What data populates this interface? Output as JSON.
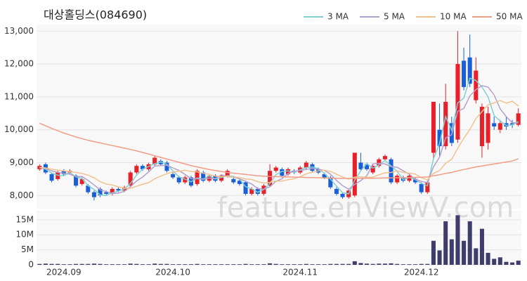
{
  "watermark": "feature.enViewV.com",
  "chart_data": [
    {
      "type": "candlestick",
      "title": "대상홀딩스(084690)",
      "up_color": "#e8202a",
      "down_color": "#1a5fd6",
      "ylim": [
        7600,
        13200
      ],
      "yticks": [
        {
          "value": 8000,
          "label": "8,000"
        },
        {
          "value": 9000,
          "label": "9,000"
        },
        {
          "value": 10000,
          "label": "10,000"
        },
        {
          "value": 11000,
          "label": "11,000"
        },
        {
          "value": 12000,
          "label": "12,000"
        },
        {
          "value": 13000,
          "label": "13,000"
        }
      ],
      "grid": true,
      "legend": "top-right",
      "open": [
        8800,
        8950,
        8650,
        8500,
        8750,
        8700,
        8600,
        8350,
        8300,
        8100,
        8200,
        8100,
        8050,
        8200,
        8150,
        8300,
        8700,
        8900,
        8800,
        8950,
        9050,
        9000,
        8650,
        8550,
        8400,
        8550,
        8350,
        8700,
        8450,
        8600,
        8450,
        8600,
        8500,
        8450,
        8400,
        8050,
        8200,
        8050,
        8300,
        8750,
        8800,
        8650,
        8750,
        8700,
        8850,
        8950,
        8800,
        8650,
        8550,
        8200,
        8050,
        7950,
        8000,
        9000,
        8950,
        8700,
        8900,
        9100,
        9100,
        8400,
        8550,
        8450,
        8500,
        8350,
        8100,
        9300,
        10000,
        9500,
        10200,
        9700,
        12100,
        12200,
        10900,
        9500,
        9600,
        10200,
        10000,
        10200,
        10200,
        10150
      ],
      "high": [
        8950,
        9000,
        8700,
        8750,
        8800,
        8800,
        8650,
        8550,
        8350,
        8150,
        8250,
        8150,
        8250,
        8250,
        8300,
        8750,
        8950,
        8950,
        9000,
        9200,
        9100,
        9050,
        8700,
        8600,
        8600,
        8600,
        8800,
        8750,
        8650,
        8650,
        8650,
        8800,
        8550,
        8500,
        8450,
        8250,
        8250,
        8350,
        8950,
        8900,
        8850,
        8850,
        8800,
        8900,
        9050,
        9000,
        8850,
        8700,
        8600,
        8250,
        8100,
        8200,
        9300,
        9300,
        9000,
        8950,
        9150,
        9250,
        9150,
        8650,
        8600,
        8650,
        8550,
        8400,
        8450,
        10850,
        10800,
        11400,
        10400,
        13000,
        12500,
        12900,
        12200,
        10800,
        10700,
        10400,
        10300,
        10400,
        10300,
        10650
      ],
      "low": [
        8750,
        8650,
        8400,
        8450,
        8600,
        8650,
        8250,
        8300,
        8050,
        7850,
        7950,
        8000,
        8000,
        8100,
        8100,
        8250,
        8650,
        8750,
        8750,
        8900,
        8900,
        8700,
        8500,
        8350,
        8350,
        8250,
        8300,
        8400,
        8400,
        8400,
        8400,
        8550,
        8350,
        8300,
        8000,
        8000,
        8000,
        8000,
        8250,
        8700,
        8550,
        8600,
        8650,
        8650,
        8800,
        8700,
        8650,
        8500,
        8200,
        8000,
        7900,
        7900,
        7950,
        8750,
        8750,
        8650,
        8850,
        9050,
        8350,
        8350,
        8400,
        8400,
        8350,
        8050,
        8050,
        9100,
        9200,
        9400,
        9500,
        9600,
        11200,
        11300,
        10800,
        9150,
        9400,
        10000,
        9900,
        10000,
        10050,
        10100
      ],
      "close": [
        8900,
        8700,
        8450,
        8700,
        8650,
        8750,
        8300,
        8500,
        8100,
        7950,
        8000,
        8050,
        8200,
        8150,
        8250,
        8700,
        8900,
        8800,
        8950,
        9150,
        8950,
        8750,
        8550,
        8400,
        8550,
        8300,
        8750,
        8450,
        8600,
        8450,
        8600,
        8750,
        8400,
        8350,
        8050,
        8200,
        8050,
        8300,
        8750,
        8850,
        8600,
        8800,
        8700,
        8850,
        9000,
        8750,
        8700,
        8550,
        8250,
        8050,
        7950,
        8150,
        9300,
        8800,
        8800,
        8900,
        9100,
        9200,
        8400,
        8600,
        8450,
        8600,
        8400,
        8100,
        8400,
        10850,
        9500,
        10850,
        9600,
        12000,
        11300,
        11400,
        11800,
        10700,
        10500,
        10100,
        10200,
        10100,
        10150,
        10500
      ],
      "series": [
        {
          "name": "3 MA",
          "color": "#7fcfd4",
          "values": [
            8850,
            8800,
            8683,
            8617,
            8600,
            8700,
            8567,
            8517,
            8300,
            8183,
            8017,
            8000,
            8083,
            8133,
            8200,
            8367,
            8617,
            8800,
            8883,
            8967,
            9017,
            8950,
            8750,
            8567,
            8500,
            8417,
            8533,
            8500,
            8600,
            8500,
            8550,
            8600,
            8583,
            8500,
            8267,
            8200,
            8100,
            8183,
            8367,
            8633,
            8733,
            8750,
            8700,
            8783,
            8850,
            8867,
            8817,
            8667,
            8500,
            8283,
            8083,
            8050,
            8467,
            8750,
            8967,
            8833,
            8933,
            9067,
            8900,
            8733,
            8483,
            8550,
            8483,
            8367,
            8300,
            9117,
            9583,
            10400,
            9983,
            10817,
            10967,
            11567,
            11500,
            11300,
            11000,
            10433,
            10267,
            10133,
            10150,
            10250
          ]
        },
        {
          "name": "5 MA",
          "color": "#b49fcc",
          "values": [
            8850,
            8820,
            8750,
            8700,
            8680,
            8650,
            8570,
            8580,
            8460,
            8320,
            8170,
            8120,
            8060,
            8070,
            8130,
            8270,
            8440,
            8560,
            8720,
            8900,
            8910,
            8920,
            8840,
            8760,
            8640,
            8510,
            8510,
            8490,
            8530,
            8510,
            8630,
            8570,
            8560,
            8510,
            8430,
            8350,
            8210,
            8190,
            8270,
            8430,
            8510,
            8670,
            8740,
            8760,
            8790,
            8820,
            8800,
            8760,
            8650,
            8460,
            8300,
            8190,
            8340,
            8450,
            8600,
            8960,
            8980,
            8960,
            8880,
            8860,
            8750,
            8650,
            8490,
            8430,
            8390,
            8870,
            9170,
            9750,
            9850,
            10560,
            10650,
            11030,
            11220,
            11340,
            11300,
            11060,
            10640,
            10400,
            10210,
            10210
          ]
        },
        {
          "name": "10 MA",
          "color": "#f2c28e",
          "values": [
            8850,
            8840,
            8800,
            8770,
            8750,
            8730,
            8700,
            8670,
            8620,
            8540,
            8420,
            8350,
            8320,
            8260,
            8220,
            8220,
            8280,
            8340,
            8390,
            8510,
            8590,
            8660,
            8720,
            8740,
            8770,
            8730,
            8720,
            8680,
            8640,
            8590,
            8570,
            8590,
            8560,
            8550,
            8500,
            8490,
            8420,
            8380,
            8400,
            8440,
            8440,
            8480,
            8510,
            8570,
            8660,
            8710,
            8750,
            8770,
            8730,
            8650,
            8560,
            8500,
            8560,
            8570,
            8550,
            8560,
            8630,
            8690,
            8700,
            8750,
            8700,
            8680,
            8650,
            8540,
            8480,
            8670,
            8760,
            8980,
            9100,
            9440,
            9740,
            10010,
            10340,
            10550,
            10760,
            10820,
            10890,
            10810,
            10870,
            10720
          ]
        },
        {
          "name": "50 MA",
          "color": "#f19c86",
          "values": [
            10200,
            10120,
            10040,
            9970,
            9900,
            9840,
            9780,
            9730,
            9680,
            9640,
            9600,
            9560,
            9520,
            9480,
            9440,
            9400,
            9360,
            9310,
            9260,
            9210,
            9160,
            9110,
            9060,
            9010,
            8960,
            8910,
            8870,
            8830,
            8790,
            8760,
            8730,
            8700,
            8680,
            8660,
            8640,
            8620,
            8600,
            8590,
            8580,
            8575,
            8570,
            8565,
            8560,
            8555,
            8550,
            8545,
            8540,
            8535,
            8530,
            8525,
            8520,
            8520,
            8525,
            8525,
            8525,
            8525,
            8530,
            8535,
            8535,
            8540,
            8540,
            8545,
            8550,
            8555,
            8565,
            8600,
            8630,
            8670,
            8700,
            8750,
            8790,
            8830,
            8870,
            8900,
            8930,
            8960,
            8990,
            9020,
            9050,
            9120
          ]
        }
      ]
    },
    {
      "type": "bar",
      "color": "#3f3d6b",
      "categories": [
        null,
        null,
        null,
        null,
        "2024.09",
        null,
        null,
        null,
        null,
        null,
        null,
        null,
        null,
        null,
        null,
        null,
        null,
        null,
        null,
        null,
        null,
        null,
        "2024.10",
        null,
        null,
        null,
        null,
        null,
        null,
        null,
        null,
        null,
        null,
        null,
        null,
        null,
        null,
        null,
        null,
        null,
        null,
        null,
        null,
        "2024.11",
        null,
        null,
        null,
        null,
        null,
        null,
        null,
        null,
        null,
        null,
        null,
        null,
        null,
        null,
        null,
        null,
        null,
        null,
        null,
        "2024.12",
        null,
        null,
        null,
        null,
        null,
        null,
        null,
        null,
        null,
        null,
        null,
        null,
        null,
        null,
        null,
        null
      ],
      "ylim": [
        0,
        18
      ],
      "yticks": [
        0,
        {
          "value": 5,
          "label": "5M"
        },
        {
          "value": 10,
          "label": "10M"
        },
        {
          "value": 15,
          "label": "15M"
        }
      ],
      "values": [
        0.3,
        0.4,
        0.3,
        0.3,
        0.2,
        0.2,
        0.3,
        0.3,
        0.3,
        0.4,
        0.3,
        0.2,
        0.2,
        0.2,
        0.2,
        0.4,
        0.3,
        0.2,
        0.2,
        0.4,
        0.3,
        0.3,
        0.2,
        0.2,
        0.2,
        0.2,
        0.3,
        0.2,
        0.2,
        0.2,
        0.2,
        0.2,
        0.2,
        0.2,
        0.3,
        0.2,
        0.2,
        0.2,
        0.5,
        0.3,
        0.2,
        0.2,
        0.2,
        0.2,
        0.3,
        0.2,
        0.2,
        0.2,
        0.3,
        0.3,
        0.3,
        0.3,
        1.2,
        0.6,
        0.4,
        0.3,
        0.4,
        0.4,
        0.5,
        0.3,
        0.2,
        0.2,
        0.2,
        0.3,
        0.3,
        8.0,
        4.8,
        14.5,
        8.5,
        16.5,
        8.0,
        14.5,
        5.5,
        12.0,
        4.0,
        2.0,
        2.5,
        1.0,
        0.8,
        1.4
      ]
    }
  ]
}
